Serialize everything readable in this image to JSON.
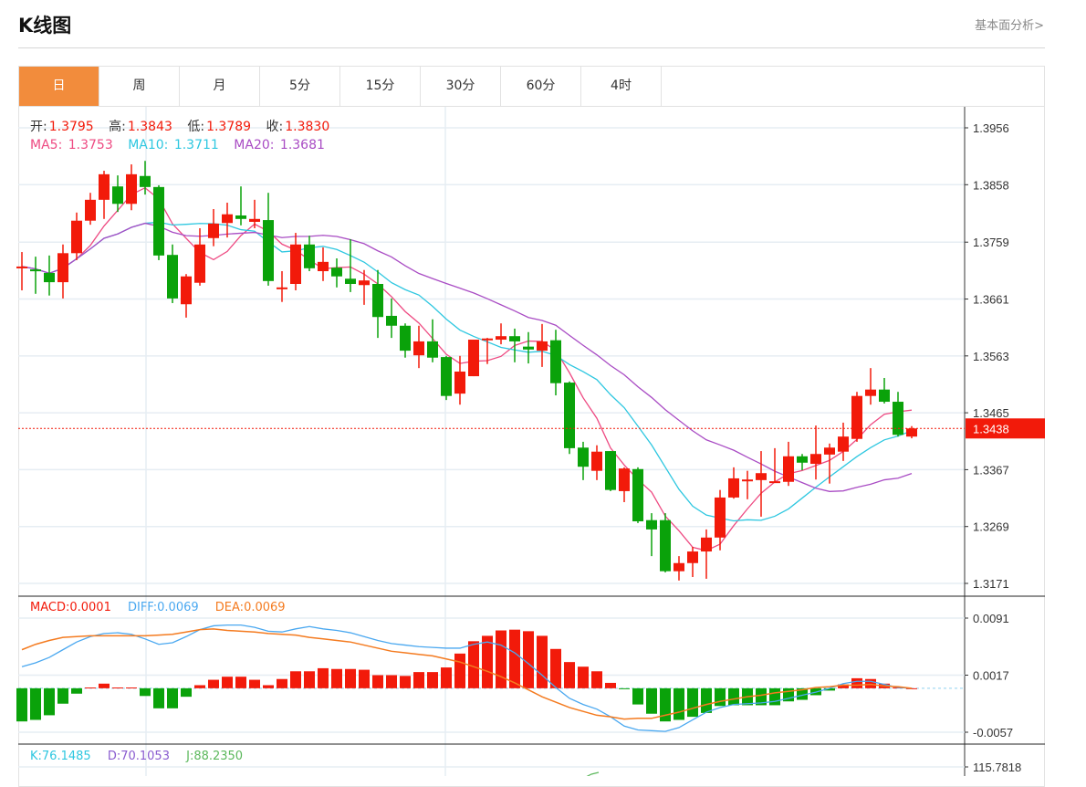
{
  "header": {
    "title": "K线图",
    "fundamental_link": "基本面分析>"
  },
  "tabs": [
    {
      "label": "日",
      "active": true
    },
    {
      "label": "周"
    },
    {
      "label": "月"
    },
    {
      "label": "5分"
    },
    {
      "label": "15分"
    },
    {
      "label": "30分"
    },
    {
      "label": "60分"
    },
    {
      "label": "4时"
    }
  ],
  "ohlc_legend": {
    "open_label": "开:",
    "open": "1.3795",
    "high_label": "高:",
    "high": "1.3843",
    "low_label": "低:",
    "low": "1.3789",
    "close_label": "收:",
    "close": "1.3830"
  },
  "ma_legend": {
    "ma5_label": "MA5:",
    "ma5": "1.3753",
    "ma10_label": "MA10:",
    "ma10": "1.3711",
    "ma20_label": "MA20:",
    "ma20": "1.3681"
  },
  "macd_legend": {
    "macd": "MACD:0.0001",
    "diff": "DIFF:0.0069",
    "dea": "DEA:0.0069"
  },
  "kdj_legend": {
    "k": "K:76.1485",
    "d": "D:70.1053",
    "j": "J:88.2350"
  },
  "colors": {
    "up": "#f21a0a",
    "down": "#0aa20a",
    "ma5": "#ee4a82",
    "ma10": "#2ec7e0",
    "ma20": "#a94cc4",
    "diff": "#4aa8f0",
    "dea": "#f47b20",
    "accent": "#f28c3c"
  },
  "chart_data": [
    {
      "type": "candlestick",
      "title": "K线图",
      "ylim": [
        1.3171,
        1.3956
      ],
      "y_ticks": [
        "1.3956",
        "1.3858",
        "1.3759",
        "1.3661",
        "1.3563",
        "1.3465",
        "1.3367",
        "1.3269",
        "1.3171"
      ],
      "last_price": "1.3438",
      "ohlc": [
        [
          1.3714,
          1.3717,
          1.3742,
          1.3676
        ],
        [
          1.3712,
          1.3709,
          1.3734,
          1.367
        ],
        [
          1.3706,
          1.369,
          1.3736,
          1.3667
        ],
        [
          1.369,
          1.374,
          1.3755,
          1.3662
        ],
        [
          1.374,
          1.3796,
          1.381,
          1.3728
        ],
        [
          1.3796,
          1.3832,
          1.3844,
          1.3789
        ],
        [
          1.3832,
          1.3876,
          1.3882,
          1.3799
        ],
        [
          1.3855,
          1.3825,
          1.3874,
          1.3811
        ],
        [
          1.3825,
          1.3876,
          1.3893,
          1.3814
        ],
        [
          1.3873,
          1.3854,
          1.3899,
          1.3841
        ],
        [
          1.3854,
          1.3736,
          1.3857,
          1.3728
        ],
        [
          1.3737,
          1.3662,
          1.3755,
          1.3654
        ],
        [
          1.3652,
          1.37,
          1.3704,
          1.3629
        ],
        [
          1.3689,
          1.3755,
          1.3783,
          1.3684
        ],
        [
          1.3766,
          1.3791,
          1.3816,
          1.3752
        ],
        [
          1.3792,
          1.3807,
          1.3827,
          1.3767
        ],
        [
          1.3805,
          1.3799,
          1.3855,
          1.3788
        ],
        [
          1.3794,
          1.3799,
          1.3832,
          1.3783
        ],
        [
          1.3797,
          1.3692,
          1.3844,
          1.3684
        ],
        [
          1.3681,
          1.3681,
          1.3709,
          1.3656
        ],
        [
          1.3687,
          1.3755,
          1.3775,
          1.3676
        ],
        [
          1.3755,
          1.3714,
          1.377,
          1.3709
        ],
        [
          1.3709,
          1.3725,
          1.375,
          1.3692
        ],
        [
          1.3715,
          1.37,
          1.3731,
          1.3681
        ],
        [
          1.3696,
          1.3687,
          1.3764,
          1.3673
        ],
        [
          1.3685,
          1.3693,
          1.3711,
          1.3651
        ],
        [
          1.3687,
          1.363,
          1.3711,
          1.3594
        ],
        [
          1.3632,
          1.3615,
          1.3662,
          1.3594
        ],
        [
          1.3615,
          1.3572,
          1.3619,
          1.356
        ],
        [
          1.3564,
          1.3588,
          1.3615,
          1.3542
        ],
        [
          1.3588,
          1.356,
          1.3626,
          1.3552
        ],
        [
          1.3561,
          1.3494,
          1.3563,
          1.3487
        ],
        [
          1.3498,
          1.3536,
          1.3563,
          1.3479
        ],
        [
          1.3528,
          1.3591,
          1.3591,
          1.3528
        ],
        [
          1.3591,
          1.3593,
          1.3594,
          1.3549
        ],
        [
          1.3591,
          1.3597,
          1.3619,
          1.3583
        ],
        [
          1.3597,
          1.3588,
          1.361,
          1.3552
        ],
        [
          1.3579,
          1.3574,
          1.3604,
          1.355
        ],
        [
          1.3572,
          1.3588,
          1.3618,
          1.3544
        ],
        [
          1.359,
          1.3516,
          1.3608,
          1.3495
        ],
        [
          1.3517,
          1.3404,
          1.3519,
          1.3394
        ],
        [
          1.3405,
          1.3372,
          1.3415,
          1.3349
        ],
        [
          1.3365,
          1.3398,
          1.3409,
          1.3349
        ],
        [
          1.3399,
          1.3332,
          1.3399,
          1.333
        ],
        [
          1.333,
          1.3369,
          1.3371,
          1.3311
        ],
        [
          1.3368,
          1.3278,
          1.3371,
          1.3275
        ],
        [
          1.328,
          1.3264,
          1.3292,
          1.3218
        ],
        [
          1.328,
          1.3192,
          1.3292,
          1.319
        ],
        [
          1.3192,
          1.3206,
          1.3218,
          1.3176
        ],
        [
          1.3206,
          1.3226,
          1.3234,
          1.3182
        ],
        [
          1.3226,
          1.325,
          1.3264,
          1.3179
        ],
        [
          1.325,
          1.3319,
          1.3332,
          1.3228
        ],
        [
          1.3319,
          1.3352,
          1.3371,
          1.3317
        ],
        [
          1.335,
          1.335,
          1.3365,
          1.3316
        ],
        [
          1.3349,
          1.3361,
          1.3399,
          1.3286
        ],
        [
          1.3347,
          1.3347,
          1.3404,
          1.3346
        ],
        [
          1.3346,
          1.339,
          1.3415,
          1.3339
        ],
        [
          1.339,
          1.3379,
          1.3394,
          1.3366
        ],
        [
          1.3377,
          1.3394,
          1.3443,
          1.335
        ],
        [
          1.3393,
          1.3405,
          1.3412,
          1.3343
        ],
        [
          1.3398,
          1.3424,
          1.3448,
          1.3382
        ],
        [
          1.342,
          1.3494,
          1.3501,
          1.3415
        ],
        [
          1.3494,
          1.3505,
          1.3542,
          1.3479
        ],
        [
          1.3505,
          1.3484,
          1.3525,
          1.3481
        ],
        [
          1.3484,
          1.3427,
          1.3501,
          1.3424
        ],
        [
          1.3424,
          1.3438,
          1.3442,
          1.3421
        ]
      ]
    },
    {
      "type": "macd",
      "y_ticks": [
        "0.0091",
        "0.0017",
        "-0.0057"
      ],
      "ylim": [
        -0.0057,
        0.0091
      ],
      "hist": [
        -0.0043,
        -0.0041,
        -0.0035,
        -0.002,
        -0.0007,
        0.0001,
        0.0006,
        0.0001,
        0.0001,
        -0.001,
        -0.0026,
        -0.0026,
        -0.0011,
        0.0004,
        0.0011,
        0.0015,
        0.0015,
        0.0011,
        0.0004,
        0.0012,
        0.0022,
        0.0022,
        0.0026,
        0.0025,
        0.0025,
        0.0024,
        0.0017,
        0.0017,
        0.0016,
        0.0021,
        0.0021,
        0.0027,
        0.0045,
        0.0061,
        0.0068,
        0.0075,
        0.0076,
        0.0074,
        0.0068,
        0.0051,
        0.0034,
        0.0028,
        0.0022,
        0.0007,
        -0.0001,
        -0.0021,
        -0.0033,
        -0.0043,
        -0.0041,
        -0.0037,
        -0.0032,
        -0.0023,
        -0.0022,
        -0.0022,
        -0.0022,
        -0.0022,
        -0.0017,
        -0.0015,
        -0.0009,
        -0.0003,
        0.0005,
        0.0013,
        0.0012,
        0.0006,
        0.0001,
        0.0
      ],
      "diff": [
        0.0028,
        0.0033,
        0.004,
        0.005,
        0.006,
        0.0067,
        0.0071,
        0.0072,
        0.007,
        0.0064,
        0.0057,
        0.0059,
        0.0067,
        0.0076,
        0.0081,
        0.0082,
        0.0082,
        0.0079,
        0.0074,
        0.0073,
        0.0077,
        0.008,
        0.0077,
        0.0075,
        0.0072,
        0.0067,
        0.0062,
        0.0058,
        0.0056,
        0.0054,
        0.0053,
        0.0052,
        0.0052,
        0.0057,
        0.006,
        0.0056,
        0.0046,
        0.0032,
        0.0017,
        0.0001,
        -0.0013,
        -0.0021,
        -0.0027,
        -0.0037,
        -0.0049,
        -0.0054,
        -0.0055,
        -0.0056,
        -0.0051,
        -0.0041,
        -0.0031,
        -0.0025,
        -0.0021,
        -0.002,
        -0.0019,
        -0.0017,
        -0.0013,
        -0.0009,
        -0.0005,
        0.0,
        0.0006,
        0.0009,
        0.0009,
        0.0005,
        0.0001,
        0.0
      ],
      "dea": [
        0.005,
        0.0057,
        0.0062,
        0.0066,
        0.0067,
        0.0068,
        0.0068,
        0.0068,
        0.0068,
        0.0068,
        0.0069,
        0.007,
        0.0073,
        0.0076,
        0.0077,
        0.0075,
        0.0074,
        0.0073,
        0.0071,
        0.007,
        0.0069,
        0.0066,
        0.0064,
        0.0062,
        0.006,
        0.0056,
        0.0052,
        0.0048,
        0.0046,
        0.0044,
        0.0042,
        0.0038,
        0.0034,
        0.0028,
        0.0022,
        0.0015,
        0.0007,
        -0.0002,
        -0.0011,
        -0.0018,
        -0.0025,
        -0.003,
        -0.0035,
        -0.0037,
        -0.004,
        -0.0039,
        -0.0039,
        -0.0035,
        -0.0031,
        -0.0026,
        -0.0021,
        -0.0017,
        -0.0014,
        -0.0011,
        -0.0009,
        -0.0006,
        -0.0004,
        -0.0002,
        0.0001,
        0.0002,
        0.0004,
        0.0004,
        0.0005,
        0.0003,
        0.0002,
        0.0
      ]
    },
    {
      "type": "kdj",
      "y_ticks": [
        "115.7818"
      ]
    }
  ]
}
